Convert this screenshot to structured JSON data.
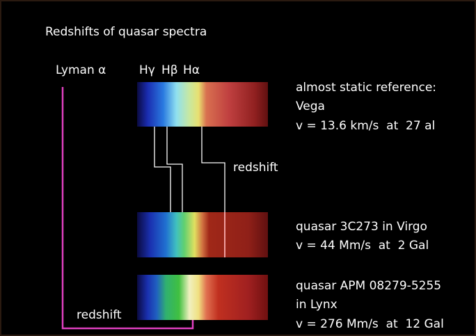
{
  "title": "Redshifts of quasar spectra",
  "line_labels": {
    "lyman": "Lyman α",
    "h_gamma": "Hγ",
    "h_beta": "Hβ",
    "h_alpha": "Hα"
  },
  "redshift_labels": [
    "redshift",
    "redshift"
  ],
  "spectra": [
    {
      "lines": [
        "almost static reference:",
        "Vega",
        "v = 13.6 km/s  at  27 al"
      ]
    },
    {
      "lines": [
        "quasar 3C273 in Virgo",
        "v = 44 Mm/s  at  2 Gal"
      ]
    },
    {
      "lines": [
        "quasar APM 08279-5255",
        "in Lynx",
        "v = 276 Mm/s  at  12 Gal"
      ]
    }
  ]
}
